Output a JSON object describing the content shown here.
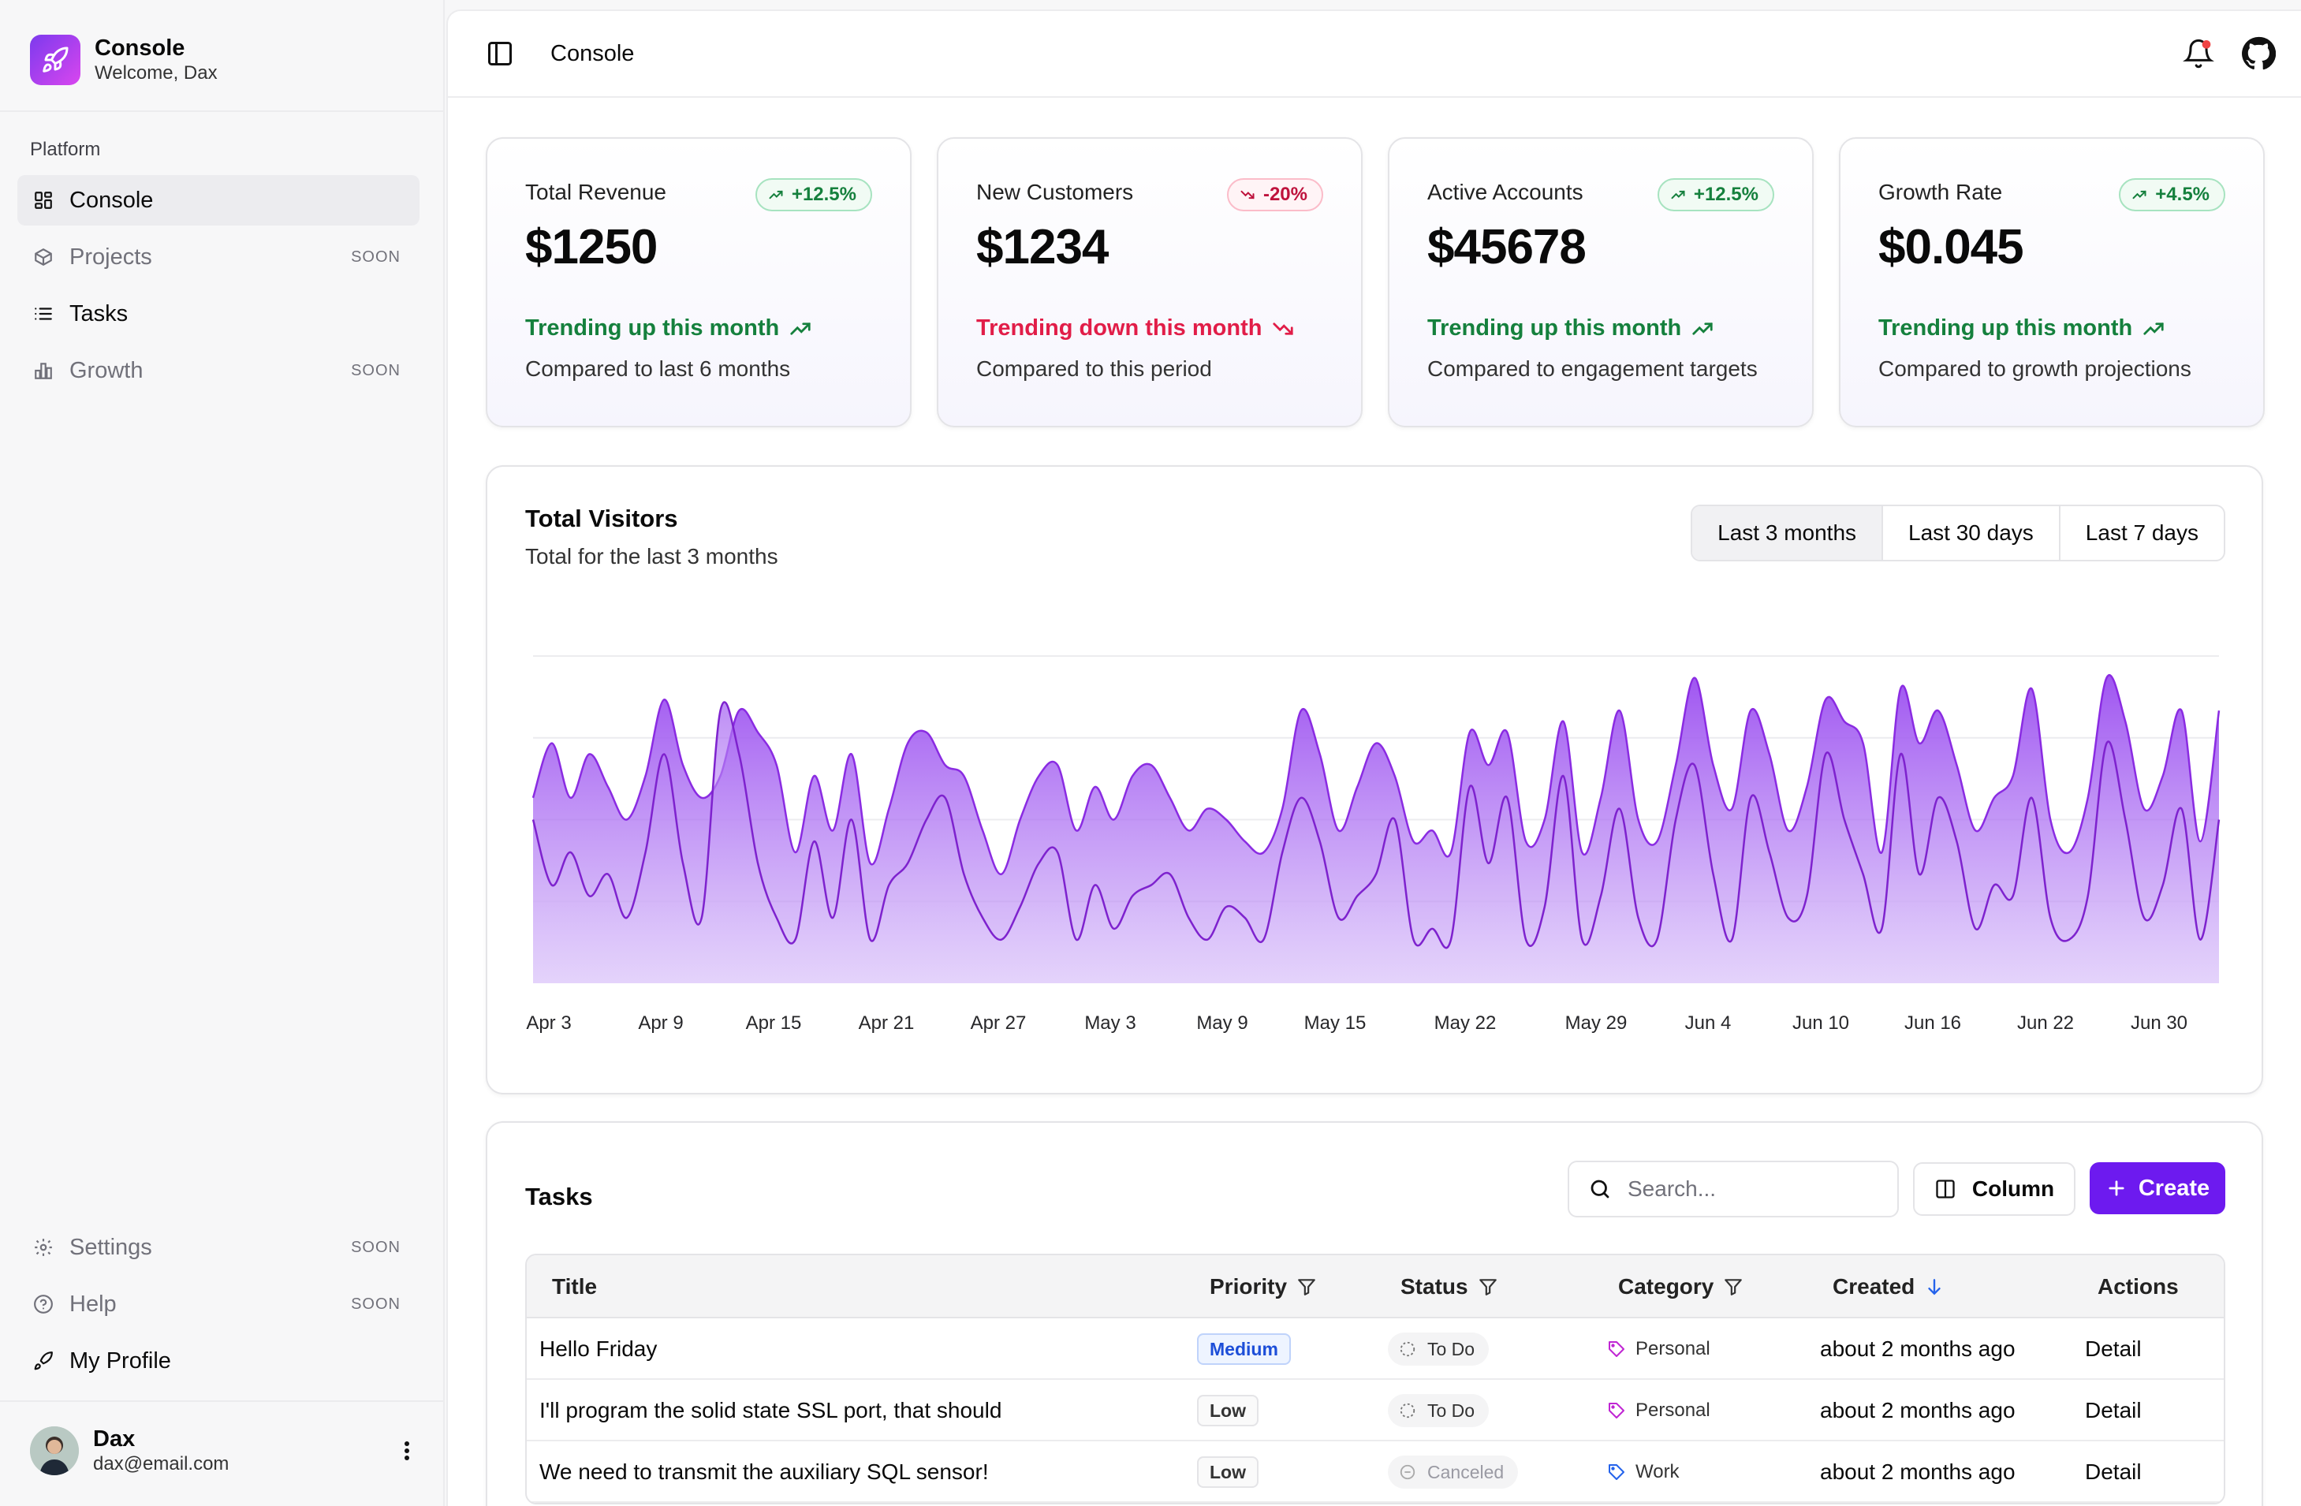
{
  "brand": {
    "title": "Console",
    "subtitle": "Welcome, Dax"
  },
  "sidebar": {
    "group_label": "Platform",
    "items": [
      {
        "label": "Console",
        "badge": ""
      },
      {
        "label": "Projects",
        "badge": "SOON"
      },
      {
        "label": "Tasks",
        "badge": ""
      },
      {
        "label": "Growth",
        "badge": "SOON"
      }
    ],
    "footer_items": [
      {
        "label": "Settings",
        "badge": "SOON"
      },
      {
        "label": "Help",
        "badge": "SOON"
      },
      {
        "label": "My Profile",
        "badge": ""
      }
    ],
    "user": {
      "name": "Dax",
      "email": "dax@email.com"
    }
  },
  "header": {
    "title": "Console"
  },
  "stats": [
    {
      "label": "Total Revenue",
      "change": "+12.5%",
      "trend": "up",
      "value": "$1250",
      "trend_text": "Trending up this month",
      "compare": "Compared to last 6 months"
    },
    {
      "label": "New Customers",
      "change": "-20%",
      "trend": "down",
      "value": "$1234",
      "trend_text": "Trending down this month",
      "compare": "Compared to this period"
    },
    {
      "label": "Active Accounts",
      "change": "+12.5%",
      "trend": "up",
      "value": "$45678",
      "trend_text": "Trending up this month",
      "compare": "Compared to engagement targets"
    },
    {
      "label": "Growth Rate",
      "change": "+4.5%",
      "trend": "up",
      "value": "$0.045",
      "trend_text": "Trending up this month",
      "compare": "Compared to growth projections"
    }
  ],
  "visitors": {
    "title": "Total Visitors",
    "subtitle": "Total for the last 3 months",
    "ranges": [
      "Last 3 months",
      "Last 30 days",
      "Last 7 days"
    ],
    "selected_range": "Last 3 months"
  },
  "chart_data": {
    "type": "area",
    "title": "Total Visitors",
    "subtitle": "Total for the last 3 months",
    "x_tick_labels": [
      "Apr 3",
      "Apr 9",
      "Apr 15",
      "Apr 21",
      "Apr 27",
      "May 3",
      "May 9",
      "May 15",
      "May 22",
      "May 29",
      "Jun 4",
      "Jun 10",
      "Jun 16",
      "Jun 22",
      "Jun 30"
    ],
    "x_start": "Apr 1",
    "x_end": "Jun 30",
    "grid": true,
    "stacked": true,
    "series": [
      {
        "values": [
          150,
          90,
          120,
          80,
          100,
          60,
          120,
          210,
          110,
          60,
          250,
          210,
          110,
          60,
          40,
          130,
          60,
          150,
          40,
          90,
          110,
          150,
          170,
          100,
          60,
          40,
          70,
          110,
          120,
          40,
          90,
          50,
          80,
          90,
          100,
          60,
          40,
          70,
          60,
          40,
          120,
          170,
          130,
          60,
          80,
          100,
          150,
          40,
          50,
          40,
          180,
          110,
          170,
          40,
          70,
          190,
          40,
          80,
          160,
          60,
          40,
          150,
          200,
          100,
          40,
          170,
          120,
          60,
          80,
          210,
          150,
          100,
          50,
          210,
          100,
          170,
          130,
          50,
          90,
          80,
          170,
          60,
          40,
          80,
          220,
          150,
          60,
          90,
          160,
          40,
          150
        ]
      },
      {
        "values": [
          170,
          220,
          170,
          210,
          180,
          150,
          190,
          260,
          200,
          170,
          190,
          250,
          230,
          200,
          120,
          190,
          140,
          210,
          110,
          160,
          220,
          230,
          200,
          190,
          140,
          100,
          150,
          190,
          200,
          140,
          180,
          150,
          190,
          200,
          170,
          140,
          160,
          150,
          130,
          120,
          160,
          250,
          210,
          140,
          180,
          220,
          190,
          130,
          140,
          120,
          230,
          200,
          230,
          130,
          150,
          240,
          120,
          170,
          250,
          150,
          130,
          200,
          280,
          200,
          160,
          250,
          210,
          140,
          180,
          260,
          240,
          220,
          120,
          270,
          220,
          250,
          200,
          140,
          170,
          190,
          270,
          150,
          120,
          170,
          280,
          240,
          160,
          190,
          250,
          130,
          250
        ]
      }
    ]
  },
  "tasks": {
    "title": "Tasks",
    "search_placeholder": "Search...",
    "column_button": "Column",
    "create_button": "Create",
    "columns": [
      "Title",
      "Priority",
      "Status",
      "Category",
      "Created",
      "Actions"
    ],
    "rows": [
      {
        "title": "Hello Friday",
        "priority": "Medium",
        "status": "To Do",
        "category": "Personal",
        "created": "about 2 months ago",
        "action": "Detail"
      },
      {
        "title": "I'll program the solid state SSL port, that should",
        "priority": "Low",
        "status": "To Do",
        "category": "Personal",
        "created": "about 2 months ago",
        "action": "Detail"
      },
      {
        "title": "We need to transmit the auxiliary SQL sensor!",
        "priority": "Low",
        "status": "Canceled",
        "category": "Work",
        "created": "about 2 months ago",
        "action": "Detail"
      }
    ]
  },
  "colors": {
    "accent": "#6d1aef",
    "chart_fill": "#9a4cf0",
    "up": "#15803d",
    "down": "#e11d48"
  }
}
